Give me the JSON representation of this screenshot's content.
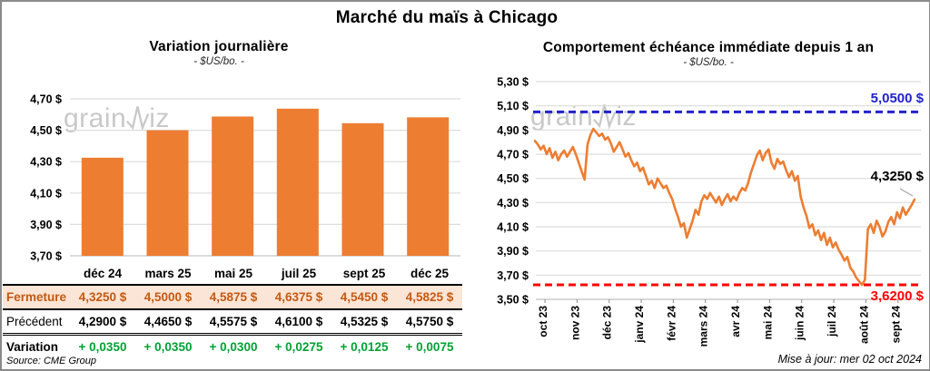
{
  "main_title": "Marché du maïs à Chicago",
  "watermark": {
    "prefix": "grain",
    "suffix": "iz"
  },
  "colors": {
    "bar_orange": "#ED7D31",
    "line_orange": "#ED7D31",
    "resistance_blue": "#2222CC",
    "support_red": "#FF0000",
    "fermeture_text": "#C45911",
    "fermeture_bg": "#FBE5D6",
    "variation_green": "#00A133",
    "gridline": "#DCDCDC",
    "watermark_gray": "#C9C9C9"
  },
  "chart_data": [
    {
      "type": "bar",
      "title": "Variation  journalière",
      "subtitle": "- $US/bo. -",
      "categories": [
        "déc 24",
        "mars 25",
        "mai 25",
        "juil 25",
        "sept 25",
        "déc 25"
      ],
      "values": [
        4.325,
        4.5,
        4.5875,
        4.6375,
        4.545,
        4.5825
      ],
      "ylim": [
        3.7,
        4.7
      ],
      "ytick_step": 0.2,
      "ytick_labels": [
        "4,70 $",
        "4,50 $",
        "4,30 $",
        "4,10 $",
        "3,90 $",
        "3,70 $"
      ],
      "bar_color": "#ED7D31",
      "grid": true,
      "legend": "none"
    },
    {
      "type": "line",
      "title": "Comportement  échéance immédiate depuis 1 an",
      "subtitle": "- $US/bo. -",
      "x_labels": [
        "oct 23",
        "nov 23",
        "déc 23",
        "janv 24",
        "févr 24",
        "mars 24",
        "avr 24",
        "mai 24",
        "juin 24",
        "juil 24",
        "août 24",
        "sept 24"
      ],
      "values": [
        4.81,
        4.78,
        4.74,
        4.77,
        4.7,
        4.75,
        4.67,
        4.72,
        4.65,
        4.7,
        4.73,
        4.68,
        4.72,
        4.76,
        4.7,
        4.63,
        4.56,
        4.49,
        4.78,
        4.86,
        4.91,
        4.88,
        4.85,
        4.87,
        4.82,
        4.84,
        4.79,
        4.72,
        4.76,
        4.8,
        4.74,
        4.68,
        4.71,
        4.65,
        4.6,
        4.63,
        4.56,
        4.59,
        4.52,
        4.45,
        4.48,
        4.42,
        4.5,
        4.46,
        4.42,
        4.44,
        4.38,
        4.33,
        4.25,
        4.18,
        4.1,
        4.13,
        4.01,
        4.08,
        4.15,
        4.24,
        4.2,
        4.31,
        4.36,
        4.33,
        4.38,
        4.34,
        4.3,
        4.35,
        4.28,
        4.33,
        4.37,
        4.31,
        4.35,
        4.32,
        4.38,
        4.42,
        4.4,
        4.46,
        4.55,
        4.62,
        4.69,
        4.73,
        4.65,
        4.71,
        4.74,
        4.63,
        4.58,
        4.66,
        4.62,
        4.64,
        4.57,
        4.51,
        4.56,
        4.48,
        4.52,
        4.35,
        4.26,
        4.19,
        4.09,
        4.12,
        4.03,
        4.07,
        3.99,
        4.05,
        3.95,
        4.01,
        3.93,
        3.97,
        3.91,
        3.87,
        3.82,
        3.85,
        3.76,
        3.73,
        3.68,
        3.65,
        3.62,
        3.66,
        4.08,
        4.12,
        4.05,
        4.15,
        4.1,
        4.02,
        4.06,
        4.14,
        4.18,
        4.12,
        4.22,
        4.17,
        4.26,
        4.2,
        4.24,
        4.28,
        4.325
      ],
      "ylim": [
        3.5,
        5.3
      ],
      "ytick_step": 0.2,
      "ytick_labels": [
        "5,30 $",
        "5,10 $",
        "4,90 $",
        "4,70 $",
        "4,50 $",
        "4,30 $",
        "4,10 $",
        "3,90 $",
        "3,70 $",
        "3,50 $"
      ],
      "line_color": "#ED7D31",
      "reference_lines": [
        {
          "value": 5.05,
          "label": "5,0500 $",
          "color": "#2222CC",
          "style": "dashed"
        },
        {
          "value": 3.62,
          "label": "3,6200 $",
          "color": "#FF0000",
          "style": "dashed"
        }
      ],
      "last_point_value": 4.325,
      "last_point_label": "4,3250 $",
      "grid": true,
      "legend": "none"
    }
  ],
  "table": {
    "col_headers": [
      "déc 24",
      "mars 25",
      "mai 25",
      "juil 25",
      "sept 25",
      "déc 25"
    ],
    "rows": [
      {
        "label": "Fermeture",
        "values": [
          "4,3250 $",
          "4,5000 $",
          "4,5875 $",
          "4,6375 $",
          "4,5450 $",
          "4,5825 $"
        ]
      },
      {
        "label": "Précédent",
        "values": [
          "4,2900 $",
          "4,4650 $",
          "4,5575 $",
          "4,6100 $",
          "4,5325 $",
          "4,5750 $"
        ]
      },
      {
        "label": "Variation",
        "values": [
          "+ 0,0350",
          "+ 0,0350",
          "+ 0,0300",
          "+ 0,0275",
          "+ 0,0125",
          "+ 0,0075"
        ]
      }
    ],
    "source": "Source: CME Group"
  },
  "footer": {
    "updated": "Mise à jour: mer 02 oct 2024"
  }
}
